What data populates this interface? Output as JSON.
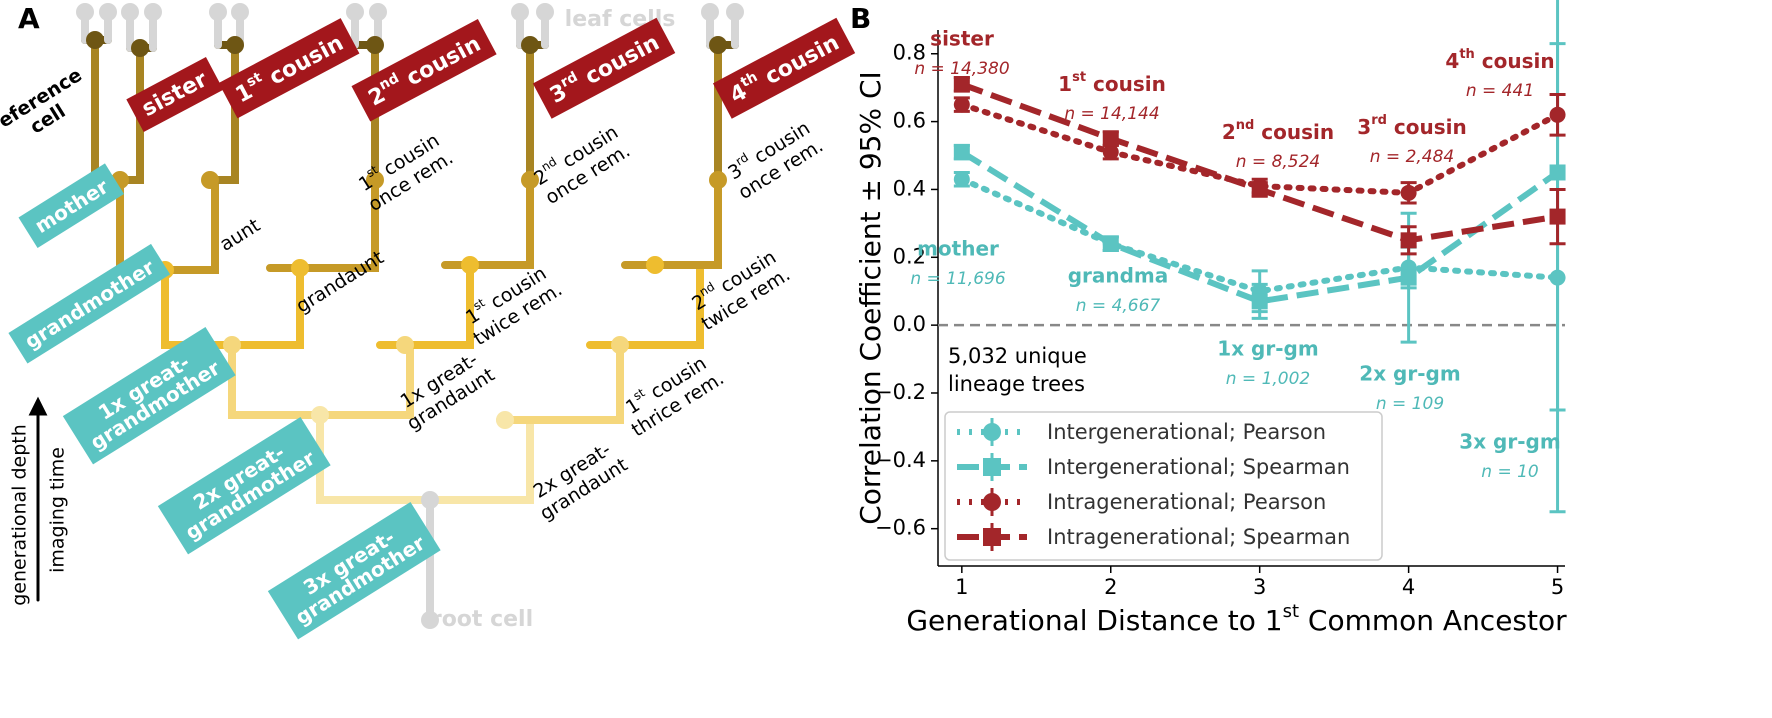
{
  "panel_a": {
    "panel_label": "A",
    "leaf_label": "leaf cells",
    "root_label": "root cell",
    "axis_labels": [
      "generational depth",
      "imaging time"
    ],
    "ancestors": [
      {
        "lines": [
          "mother"
        ]
      },
      {
        "lines": [
          "grandmother"
        ]
      },
      {
        "lines": [
          "1x great-",
          "grandmother"
        ]
      },
      {
        "lines": [
          "2x great-",
          "grandmother"
        ]
      },
      {
        "lines": [
          "3x great-",
          "grandmother"
        ]
      }
    ],
    "relatives": [
      {
        "lines": [
          "sister"
        ]
      },
      {
        "lines": [
          [
            "1",
            "st",
            " cousin"
          ]
        ]
      },
      {
        "lines": [
          [
            "2",
            "nd",
            " cousin"
          ]
        ]
      },
      {
        "lines": [
          [
            "3",
            "rd",
            " cousin"
          ]
        ]
      },
      {
        "lines": [
          [
            "4",
            "th",
            " cousin"
          ]
        ]
      }
    ],
    "kin": [
      {
        "lines": [
          "reference",
          "cell"
        ]
      },
      {
        "lines": [
          "aunt"
        ]
      },
      {
        "lines": [
          [
            "1",
            "st",
            " cousin"
          ],
          "once rem."
        ]
      },
      {
        "lines": [
          "grandaunt"
        ]
      },
      {
        "lines": [
          [
            "2",
            "nd",
            " cousin"
          ],
          "once rem."
        ]
      },
      {
        "lines": [
          [
            "1",
            "st",
            " cousin"
          ],
          "twice rem."
        ]
      },
      {
        "lines": [
          [
            "3",
            "rd",
            " cousin"
          ],
          "once rem."
        ]
      },
      {
        "lines": [
          [
            "2",
            "nd",
            " cousin"
          ],
          "twice rem."
        ]
      },
      {
        "lines": [
          "1x great-",
          "grandaunt"
        ]
      },
      {
        "lines": [
          [
            "1",
            "st",
            " cousin"
          ],
          "thrice rem."
        ]
      },
      {
        "lines": [
          "2x great-",
          "grandaunt"
        ]
      }
    ]
  },
  "chart_data": {
    "type": "line",
    "panel_label": "B",
    "xlabel": [
      "Generational Distance to 1",
      "st",
      " Common Ancestor"
    ],
    "ylabel": "Correlation Coefficient ± 95% CI",
    "note": [
      "5,032 unique",
      "lineage trees"
    ],
    "x": [
      1,
      2,
      3,
      4,
      5
    ],
    "xlim": [
      0.84,
      5.05
    ],
    "xticks": [
      1,
      2,
      3,
      4,
      5
    ],
    "ylim": [
      -0.71,
      0.87
    ],
    "yticks": [
      {
        "value": -0.6,
        "label": "−0.6"
      },
      {
        "value": -0.4,
        "label": "−0.4"
      },
      {
        "value": -0.2,
        "label": "−0.2"
      },
      {
        "value": 0,
        "label": "0.0"
      },
      0.2,
      0.4,
      0.6,
      0.8
    ],
    "hline": 0,
    "legend": "lower left",
    "series": [
      {
        "name": "Intergenerational; Pearson",
        "color": "#5bc4c2",
        "dash": "dotted",
        "marker": "circle",
        "values": [
          0.43,
          0.24,
          0.1,
          0.17,
          0.14
        ],
        "errors": [
          0.02,
          0.02,
          0.06,
          0.06,
          0.69
        ]
      },
      {
        "name": "Intergenerational; Spearman",
        "color": "#5bc4c2",
        "dash": "dashed",
        "marker": "square",
        "values": [
          0.51,
          0.24,
          0.07,
          0.14,
          0.45
        ],
        "errors": [
          0.02,
          0.02,
          0.05,
          0.19,
          0.7
        ]
      },
      {
        "name": "Intragenerational; Pearson",
        "color": "#a3262a",
        "dash": "dotted",
        "marker": "circle",
        "values": [
          0.65,
          0.51,
          0.41,
          0.39,
          0.62
        ],
        "errors": [
          0.02,
          0.02,
          0.02,
          0.03,
          0.06
        ]
      },
      {
        "name": "Intragenerational; Spearman",
        "color": "#a3262a",
        "dash": "dashed",
        "marker": "square",
        "values": [
          0.71,
          0.55,
          0.4,
          0.25,
          0.32
        ],
        "errors": [
          0.02,
          0.02,
          0.02,
          0.04,
          0.08
        ]
      }
    ],
    "annotations": [
      {
        "label": "sister",
        "n": "n = 14,380",
        "color": "#a3262a"
      },
      {
        "label": [
          "1",
          "st",
          " cousin"
        ],
        "n": "n = 14,144",
        "color": "#a3262a"
      },
      {
        "label": [
          "2",
          "nd",
          " cousin"
        ],
        "n": "n = 8,524",
        "color": "#a3262a"
      },
      {
        "label": [
          "3",
          "rd",
          " cousin"
        ],
        "n": "n = 2,484",
        "color": "#a3262a"
      },
      {
        "label": [
          "4",
          "th",
          " cousin"
        ],
        "n": "n = 441",
        "color": "#a3262a"
      },
      {
        "label": "mother",
        "n": "n = 11,696",
        "color": "#4fb9b7"
      },
      {
        "label": "grandma",
        "n": "n = 4,667",
        "color": "#4fb9b7"
      },
      {
        "label": "1x gr-gm",
        "n": "n = 1,002",
        "color": "#4fb9b7"
      },
      {
        "label": "2x gr-gm",
        "n": "n = 109",
        "color": "#4fb9b7"
      },
      {
        "label": "3x gr-gm",
        "n": "n = 10",
        "color": "#4fb9b7"
      }
    ]
  }
}
